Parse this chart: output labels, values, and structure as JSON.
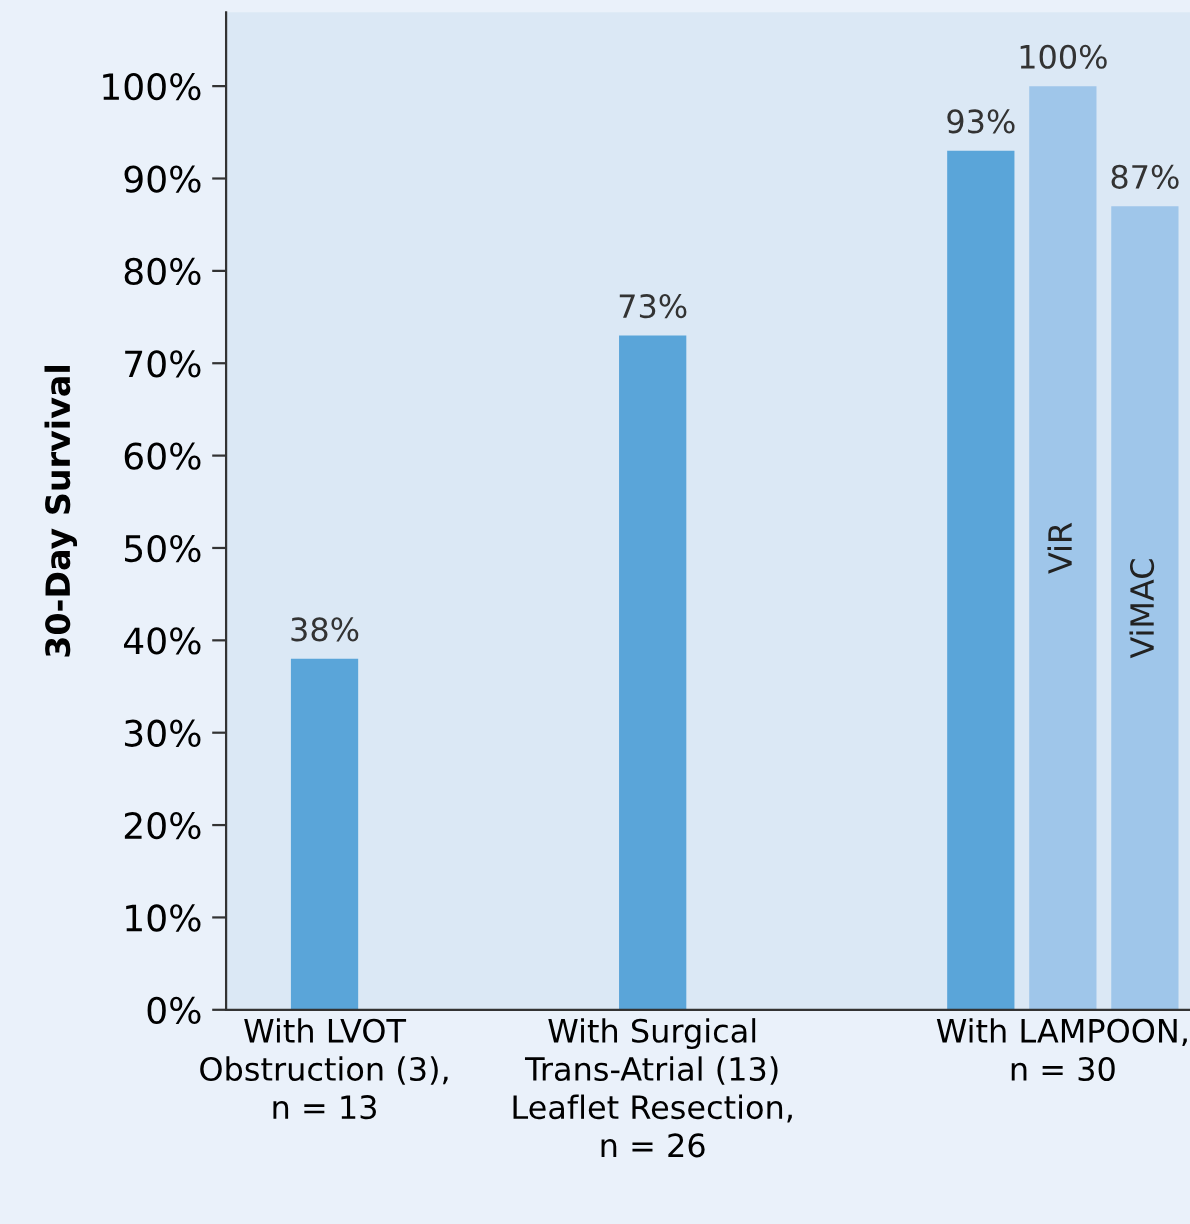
{
  "chart_data": {
    "type": "bar",
    "ylabel": "30-Day Survival",
    "categories": [
      "With LVOT\nObstruction (3),\nn = 13",
      null,
      null,
      null,
      "With Surgical\nTrans-Atrial (13)\nLeaflet Resection,\nn = 26",
      null,
      null,
      null,
      null,
      "With LAMPOON,\nn = 30",
      null
    ],
    "values": [
      38,
      null,
      null,
      null,
      73,
      null,
      null,
      null,
      93,
      100,
      87
    ],
    "colors": [
      "#5aa5d9",
      null,
      null,
      null,
      "#5aa5d9",
      null,
      null,
      null,
      "#5aa5d9",
      "#9fc6ea",
      "#9fc6ea"
    ],
    "value_labels": [
      "38%",
      null,
      null,
      null,
      "73%",
      null,
      null,
      null,
      "93%",
      "100%",
      "87%"
    ],
    "annotations": [
      "ViR",
      "ViMAC"
    ],
    "ylim": [
      0,
      108
    ],
    "yticks": [
      {
        "value": 0,
        "label": "0%"
      },
      {
        "value": 10,
        "label": "10%"
      },
      {
        "value": 20,
        "label": "20%"
      },
      {
        "value": 30,
        "label": "30%"
      },
      {
        "value": 40,
        "label": "40%"
      },
      {
        "value": 50,
        "label": "50%"
      },
      {
        "value": 60,
        "label": "60%"
      },
      {
        "value": 70,
        "label": "70%"
      },
      {
        "value": 80,
        "label": "80%"
      },
      {
        "value": 90,
        "label": "90%"
      },
      {
        "value": 100,
        "label": "100%"
      }
    ],
    "grid": false,
    "legend": false
  }
}
